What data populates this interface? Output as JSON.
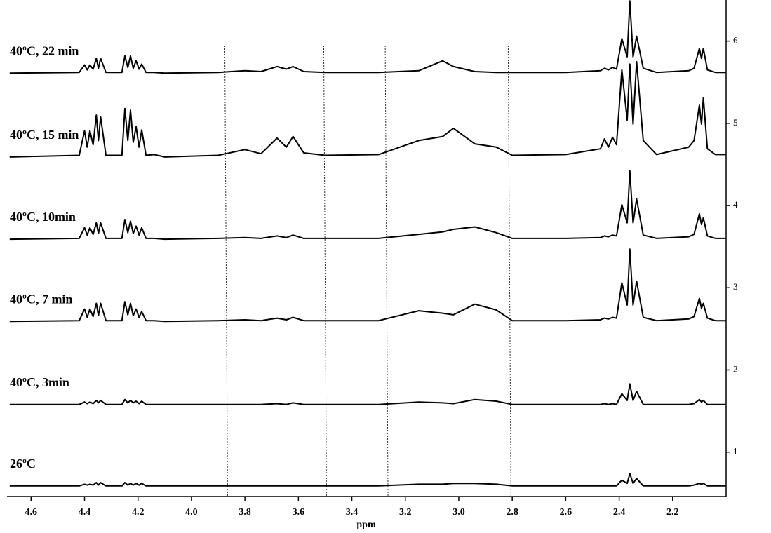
{
  "chart_data": {
    "type": "line",
    "x_label": "ppm",
    "xlim": [
      4.69,
      2.0
    ],
    "ylim": [
      0.46,
      6.5
    ],
    "xticks": [
      4.6,
      4.4,
      4.2,
      {
        "value": 4.0,
        "label": "4.0"
      },
      3.8,
      3.6,
      3.4,
      3.2,
      {
        "value": 3.0,
        "label": "3.0"
      },
      2.8,
      2.6,
      2.4,
      2.2
    ],
    "yticks": [
      1,
      2,
      3,
      4,
      5,
      6
    ],
    "vlines": [
      3.87,
      3.5,
      3.27,
      2.81
    ],
    "x": [
      4.68,
      4.42,
      4.4,
      4.39,
      4.38,
      4.368,
      4.356,
      4.348,
      4.34,
      4.32,
      4.26,
      4.249,
      4.238,
      4.228,
      4.218,
      4.207,
      4.196,
      4.186,
      4.17,
      4.14,
      4.1,
      3.9,
      3.8,
      3.74,
      3.68,
      3.645,
      3.62,
      3.58,
      3.5,
      3.3,
      3.15,
      3.06,
      3.02,
      2.94,
      2.86,
      2.8,
      2.6,
      2.47,
      2.455,
      2.44,
      2.425,
      2.41,
      2.39,
      2.37,
      2.36,
      2.348,
      2.335,
      2.31,
      2.26,
      2.14,
      2.12,
      2.1,
      2.092,
      2.085,
      2.07,
      2.04,
      2.0
    ],
    "series": [
      {
        "name": "40ºC, 22 min",
        "color": "#000000",
        "values": [
          5.61,
          5.62,
          5.71,
          5.65,
          5.71,
          5.66,
          5.79,
          5.67,
          5.79,
          5.62,
          5.62,
          5.82,
          5.68,
          5.82,
          5.67,
          5.76,
          5.66,
          5.72,
          5.62,
          5.62,
          5.61,
          5.62,
          5.64,
          5.63,
          5.69,
          5.66,
          5.69,
          5.63,
          5.62,
          5.62,
          5.64,
          5.76,
          5.69,
          5.63,
          5.62,
          5.62,
          5.62,
          5.64,
          5.67,
          5.65,
          5.68,
          5.66,
          6.03,
          5.81,
          6.49,
          5.81,
          6.06,
          5.67,
          5.62,
          5.64,
          5.67,
          5.91,
          5.79,
          5.91,
          5.65,
          5.62,
          5.62
        ]
      },
      {
        "name": "40ºC, 15 min",
        "color": "#000000",
        "values": [
          4.59,
          4.61,
          4.91,
          4.71,
          4.91,
          4.74,
          5.1,
          4.79,
          5.08,
          4.61,
          4.61,
          5.18,
          4.79,
          5.16,
          4.77,
          4.96,
          4.71,
          4.92,
          4.61,
          4.62,
          4.59,
          4.61,
          4.68,
          4.63,
          4.82,
          4.71,
          4.84,
          4.64,
          4.61,
          4.62,
          4.79,
          4.84,
          4.94,
          4.75,
          4.71,
          4.61,
          4.62,
          4.69,
          4.81,
          4.71,
          4.83,
          4.74,
          5.65,
          5.04,
          5.72,
          4.99,
          5.75,
          4.79,
          4.62,
          4.71,
          4.79,
          5.22,
          4.99,
          5.31,
          4.69,
          4.62,
          4.62
        ]
      },
      {
        "name": "40ºC, 10min",
        "color": "#000000",
        "values": [
          3.59,
          3.6,
          3.73,
          3.64,
          3.73,
          3.65,
          3.79,
          3.66,
          3.79,
          3.6,
          3.6,
          3.83,
          3.67,
          3.81,
          3.66,
          3.75,
          3.64,
          3.73,
          3.6,
          3.6,
          3.59,
          3.6,
          3.61,
          3.6,
          3.63,
          3.61,
          3.64,
          3.6,
          3.6,
          3.6,
          3.65,
          3.68,
          3.71,
          3.74,
          3.67,
          3.6,
          3.6,
          3.61,
          3.63,
          3.62,
          3.64,
          3.63,
          4.01,
          3.79,
          4.42,
          3.79,
          4.08,
          3.64,
          3.6,
          3.62,
          3.65,
          3.9,
          3.77,
          3.85,
          3.63,
          3.6,
          3.6
        ]
      },
      {
        "name": "40ºC, 7 min",
        "color": "#000000",
        "values": [
          2.59,
          2.6,
          2.74,
          2.64,
          2.74,
          2.65,
          2.81,
          2.66,
          2.81,
          2.6,
          2.6,
          2.83,
          2.67,
          2.81,
          2.66,
          2.74,
          2.64,
          2.71,
          2.6,
          2.6,
          2.59,
          2.6,
          2.61,
          2.6,
          2.63,
          2.61,
          2.64,
          2.6,
          2.6,
          2.6,
          2.72,
          2.69,
          2.67,
          2.8,
          2.73,
          2.6,
          2.6,
          2.61,
          2.63,
          2.62,
          2.64,
          2.63,
          3.06,
          2.79,
          3.47,
          2.79,
          3.08,
          2.64,
          2.6,
          2.62,
          2.65,
          2.87,
          2.75,
          2.81,
          2.63,
          2.6,
          2.6
        ]
      },
      {
        "name": "40ºC, 3min",
        "color": "#000000",
        "values": [
          1.58,
          1.58,
          1.61,
          1.59,
          1.61,
          1.59,
          1.63,
          1.6,
          1.63,
          1.58,
          1.58,
          1.64,
          1.6,
          1.63,
          1.6,
          1.62,
          1.59,
          1.62,
          1.58,
          1.58,
          1.58,
          1.58,
          1.58,
          1.58,
          1.59,
          1.58,
          1.6,
          1.58,
          1.58,
          1.58,
          1.61,
          1.6,
          1.59,
          1.64,
          1.62,
          1.58,
          1.58,
          1.58,
          1.59,
          1.58,
          1.59,
          1.58,
          1.71,
          1.63,
          1.83,
          1.63,
          1.74,
          1.58,
          1.58,
          1.58,
          1.59,
          1.64,
          1.61,
          1.63,
          1.58,
          1.58,
          1.58
        ]
      },
      {
        "name": "26ºC",
        "color": "#000000",
        "values": [
          0.59,
          0.59,
          0.61,
          0.6,
          0.61,
          0.6,
          0.63,
          0.6,
          0.63,
          0.59,
          0.59,
          0.63,
          0.6,
          0.62,
          0.6,
          0.62,
          0.6,
          0.62,
          0.59,
          0.59,
          0.59,
          0.59,
          0.59,
          0.59,
          0.59,
          0.59,
          0.59,
          0.59,
          0.59,
          0.59,
          0.61,
          0.61,
          0.62,
          0.62,
          0.61,
          0.59,
          0.59,
          0.59,
          0.59,
          0.59,
          0.59,
          0.59,
          0.66,
          0.62,
          0.74,
          0.62,
          0.68,
          0.59,
          0.59,
          0.59,
          0.6,
          0.62,
          0.61,
          0.62,
          0.59,
          0.59,
          0.59
        ]
      }
    ]
  }
}
